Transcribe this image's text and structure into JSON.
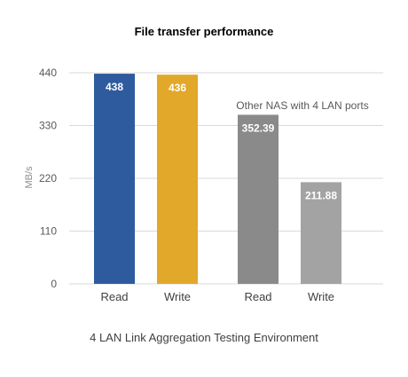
{
  "chart_data": {
    "type": "bar",
    "title": "File transfer performance",
    "ylabel": "MB/s",
    "xlabel": "4 LAN Link Aggregation Testing Environment",
    "ylim": [
      0,
      440
    ],
    "yticks": [
      0,
      110,
      220,
      330,
      440
    ],
    "grid": true,
    "categories": [
      "Read",
      "Write",
      "Read",
      "Write"
    ],
    "values": [
      438,
      436,
      352.39,
      211.88
    ],
    "value_labels": [
      "438",
      "436",
      "352.39",
      "211.88"
    ],
    "bar_colors": [
      "#2e5b9e",
      "#e1a82a",
      "#8a8a8a",
      "#a3a3a3"
    ],
    "annotation": "Other NAS with 4 LAN ports"
  },
  "colors": {
    "grid": "#d9d9d9",
    "axis_text": "#595959",
    "title_text": "#000000",
    "value_label": "#ffffff"
  }
}
